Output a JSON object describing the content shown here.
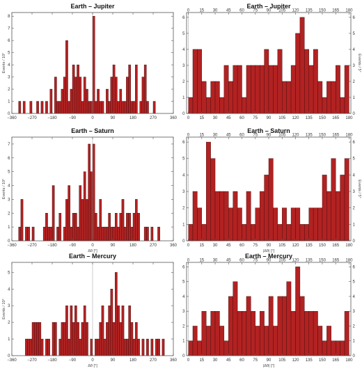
{
  "chart_data": [
    {
      "type": "bar",
      "title": "Earth – Jupiter",
      "xlabel": "",
      "ylabel": "Events / 10°",
      "xlim": [
        -360,
        360
      ],
      "ylim": [
        0,
        8.3
      ],
      "xticks": [
        -360,
        -270,
        -180,
        -90,
        0,
        90,
        180,
        270,
        360
      ],
      "yticks": [
        0,
        1,
        2,
        3,
        4,
        5,
        6,
        7,
        8
      ],
      "bin_width": 10,
      "xtick_mirror_top": false,
      "bins": [
        -330,
        -310,
        -280,
        -250,
        -230,
        -210,
        -190,
        -170,
        -160,
        -150,
        -140,
        -130,
        -120,
        -110,
        -100,
        -90,
        -80,
        -70,
        -60,
        -50,
        -40,
        -30,
        -20,
        -10,
        0,
        10,
        20,
        30,
        40,
        60,
        70,
        80,
        90,
        100,
        110,
        120,
        130,
        140,
        150,
        160,
        170,
        180,
        190,
        210,
        220,
        230,
        240,
        270
      ],
      "values": [
        1,
        1,
        1,
        1,
        1,
        1,
        2,
        3,
        1,
        1,
        2,
        3,
        6,
        1,
        2,
        4,
        3,
        4,
        3,
        1,
        3,
        2,
        1,
        1,
        8,
        1,
        2,
        1,
        1,
        2,
        1,
        3,
        4,
        3,
        1,
        2,
        1,
        1,
        3,
        4,
        1,
        1,
        4,
        1,
        3,
        4,
        1,
        1
      ]
    },
    {
      "type": "bar",
      "title": "Earth – Jupiter",
      "xlabel": "",
      "ylabel": "Events / 5°",
      "xlim": [
        -2,
        182
      ],
      "ylim": [
        0,
        6.3
      ],
      "xticks": [
        0,
        15,
        30,
        45,
        60,
        75,
        90,
        105,
        120,
        135,
        150,
        165,
        180
      ],
      "yticks": [
        0,
        1,
        2,
        3,
        4,
        5,
        6
      ],
      "bin_width": 5,
      "xtick_mirror_top": true,
      "bins": [
        0,
        5,
        10,
        15,
        20,
        25,
        30,
        35,
        40,
        45,
        50,
        55,
        60,
        65,
        70,
        75,
        80,
        85,
        90,
        95,
        100,
        105,
        110,
        115,
        120,
        125,
        130,
        135,
        140,
        145,
        150,
        155,
        160,
        165,
        170,
        175
      ],
      "values": [
        1,
        4,
        4,
        2,
        1,
        2,
        2,
        1,
        3,
        2,
        3,
        3,
        1,
        3,
        3,
        3,
        3,
        4,
        3,
        3,
        4,
        2,
        2,
        3,
        5,
        6,
        4,
        3,
        4,
        2,
        1,
        2,
        2,
        3,
        1,
        3
      ]
    },
    {
      "type": "bar",
      "title": "Earth – Saturn",
      "xlabel": "Δθ [°]",
      "ylabel": "Events / 10°",
      "xlim": [
        -360,
        360
      ],
      "ylim": [
        0,
        7.5
      ],
      "xticks": [
        -360,
        -270,
        -180,
        -90,
        0,
        90,
        180,
        270,
        360
      ],
      "yticks": [
        0,
        1,
        2,
        3,
        4,
        5,
        6,
        7
      ],
      "bin_width": 10,
      "xtick_mirror_top": false,
      "bins": [
        -330,
        -320,
        -300,
        -290,
        -270,
        -220,
        -210,
        -200,
        -190,
        -180,
        -160,
        -150,
        -130,
        -120,
        -110,
        -100,
        -90,
        -80,
        -70,
        -60,
        -50,
        -40,
        -30,
        -20,
        -10,
        0,
        10,
        20,
        30,
        40,
        50,
        60,
        70,
        80,
        90,
        100,
        110,
        120,
        130,
        140,
        150,
        160,
        170,
        180,
        190,
        200,
        230,
        240,
        260,
        290
      ],
      "values": [
        1,
        3,
        1,
        1,
        1,
        1,
        2,
        1,
        1,
        4,
        1,
        2,
        1,
        3,
        4,
        1,
        2,
        2,
        1,
        4,
        3,
        5,
        3,
        7,
        5,
        7,
        2,
        1,
        3,
        1,
        1,
        1,
        2,
        1,
        1,
        2,
        1,
        2,
        3,
        1,
        2,
        2,
        1,
        2,
        3,
        2,
        1,
        1,
        1,
        1
      ]
    },
    {
      "type": "bar",
      "title": "Earth – Saturn",
      "xlabel": "|Δθ| [°]",
      "ylabel": "Events / 5°",
      "xlim": [
        -2,
        182
      ],
      "ylim": [
        0,
        6.3
      ],
      "xticks": [
        0,
        15,
        30,
        45,
        60,
        75,
        90,
        105,
        120,
        135,
        150,
        165,
        180
      ],
      "yticks": [
        0,
        1,
        2,
        3,
        4,
        5,
        6
      ],
      "bin_width": 5,
      "xtick_mirror_top": true,
      "bins": [
        0,
        5,
        10,
        15,
        20,
        25,
        30,
        35,
        40,
        45,
        50,
        55,
        60,
        65,
        70,
        75,
        80,
        85,
        90,
        95,
        100,
        105,
        110,
        115,
        120,
        125,
        130,
        135,
        140,
        145,
        150,
        155,
        160,
        165,
        170,
        175
      ],
      "values": [
        1,
        3,
        2,
        1,
        6,
        5,
        3,
        3,
        3,
        2,
        3,
        2,
        1,
        3,
        1,
        2,
        3,
        4,
        5,
        2,
        1,
        2,
        1,
        2,
        2,
        1,
        1,
        2,
        2,
        2,
        4,
        3,
        5,
        3,
        4,
        5
      ]
    },
    {
      "type": "bar",
      "title": "Earth – Mercury",
      "xlabel": "Δθ [°]",
      "ylabel": "Events / 10°",
      "xlim": [
        -360,
        360
      ],
      "ylim": [
        0,
        5.6
      ],
      "xticks": [
        -360,
        -270,
        -180,
        -90,
        0,
        90,
        180,
        270,
        360
      ],
      "yticks": [
        0,
        1,
        2,
        3,
        4,
        5
      ],
      "bin_width": 10,
      "xtick_mirror_top": false,
      "bins": [
        -300,
        -290,
        -280,
        -270,
        -260,
        -250,
        -240,
        -230,
        -210,
        -200,
        -180,
        -170,
        -150,
        -140,
        -130,
        -120,
        -110,
        -100,
        -90,
        -80,
        -70,
        -60,
        -50,
        -40,
        -30,
        -10,
        10,
        20,
        30,
        40,
        50,
        60,
        70,
        80,
        90,
        100,
        110,
        120,
        130,
        140,
        150,
        160,
        170,
        180,
        190,
        200,
        220,
        240,
        260,
        280,
        290,
        310
      ],
      "values": [
        1,
        1,
        1,
        2,
        2,
        2,
        2,
        1,
        1,
        1,
        2,
        2,
        1,
        2,
        2,
        3,
        1,
        3,
        2,
        3,
        2,
        1,
        2,
        3,
        2,
        1,
        1,
        1,
        2,
        3,
        1,
        2,
        3,
        4,
        2,
        5,
        3,
        2,
        3,
        1,
        1,
        3,
        2,
        1,
        2,
        1,
        1,
        1,
        1,
        1,
        1,
        1
      ]
    },
    {
      "type": "bar",
      "title": "Earth – Mercury",
      "xlabel": "|Δθ| [°]",
      "ylabel": "",
      "xlim": [
        -2,
        182
      ],
      "ylim": [
        0,
        6.3
      ],
      "xticks": [
        0,
        15,
        30,
        45,
        60,
        75,
        90,
        105,
        120,
        135,
        150,
        165,
        180
      ],
      "yticks": [
        0,
        1,
        2,
        3,
        4,
        5,
        6
      ],
      "bin_width": 5,
      "xtick_mirror_top": true,
      "bins": [
        0,
        5,
        10,
        15,
        20,
        25,
        30,
        35,
        40,
        45,
        50,
        55,
        60,
        65,
        70,
        75,
        80,
        85,
        90,
        95,
        100,
        105,
        110,
        115,
        120,
        125,
        130,
        135,
        140,
        145,
        150,
        155,
        160,
        165,
        170,
        175
      ],
      "values": [
        1,
        2,
        1,
        3,
        2,
        3,
        3,
        2,
        1,
        4,
        5,
        3,
        3,
        4,
        3,
        2,
        3,
        2,
        4,
        2,
        4,
        4,
        5,
        3,
        6,
        4,
        3,
        3,
        3,
        2,
        1,
        2,
        1,
        1,
        1,
        3
      ]
    }
  ]
}
